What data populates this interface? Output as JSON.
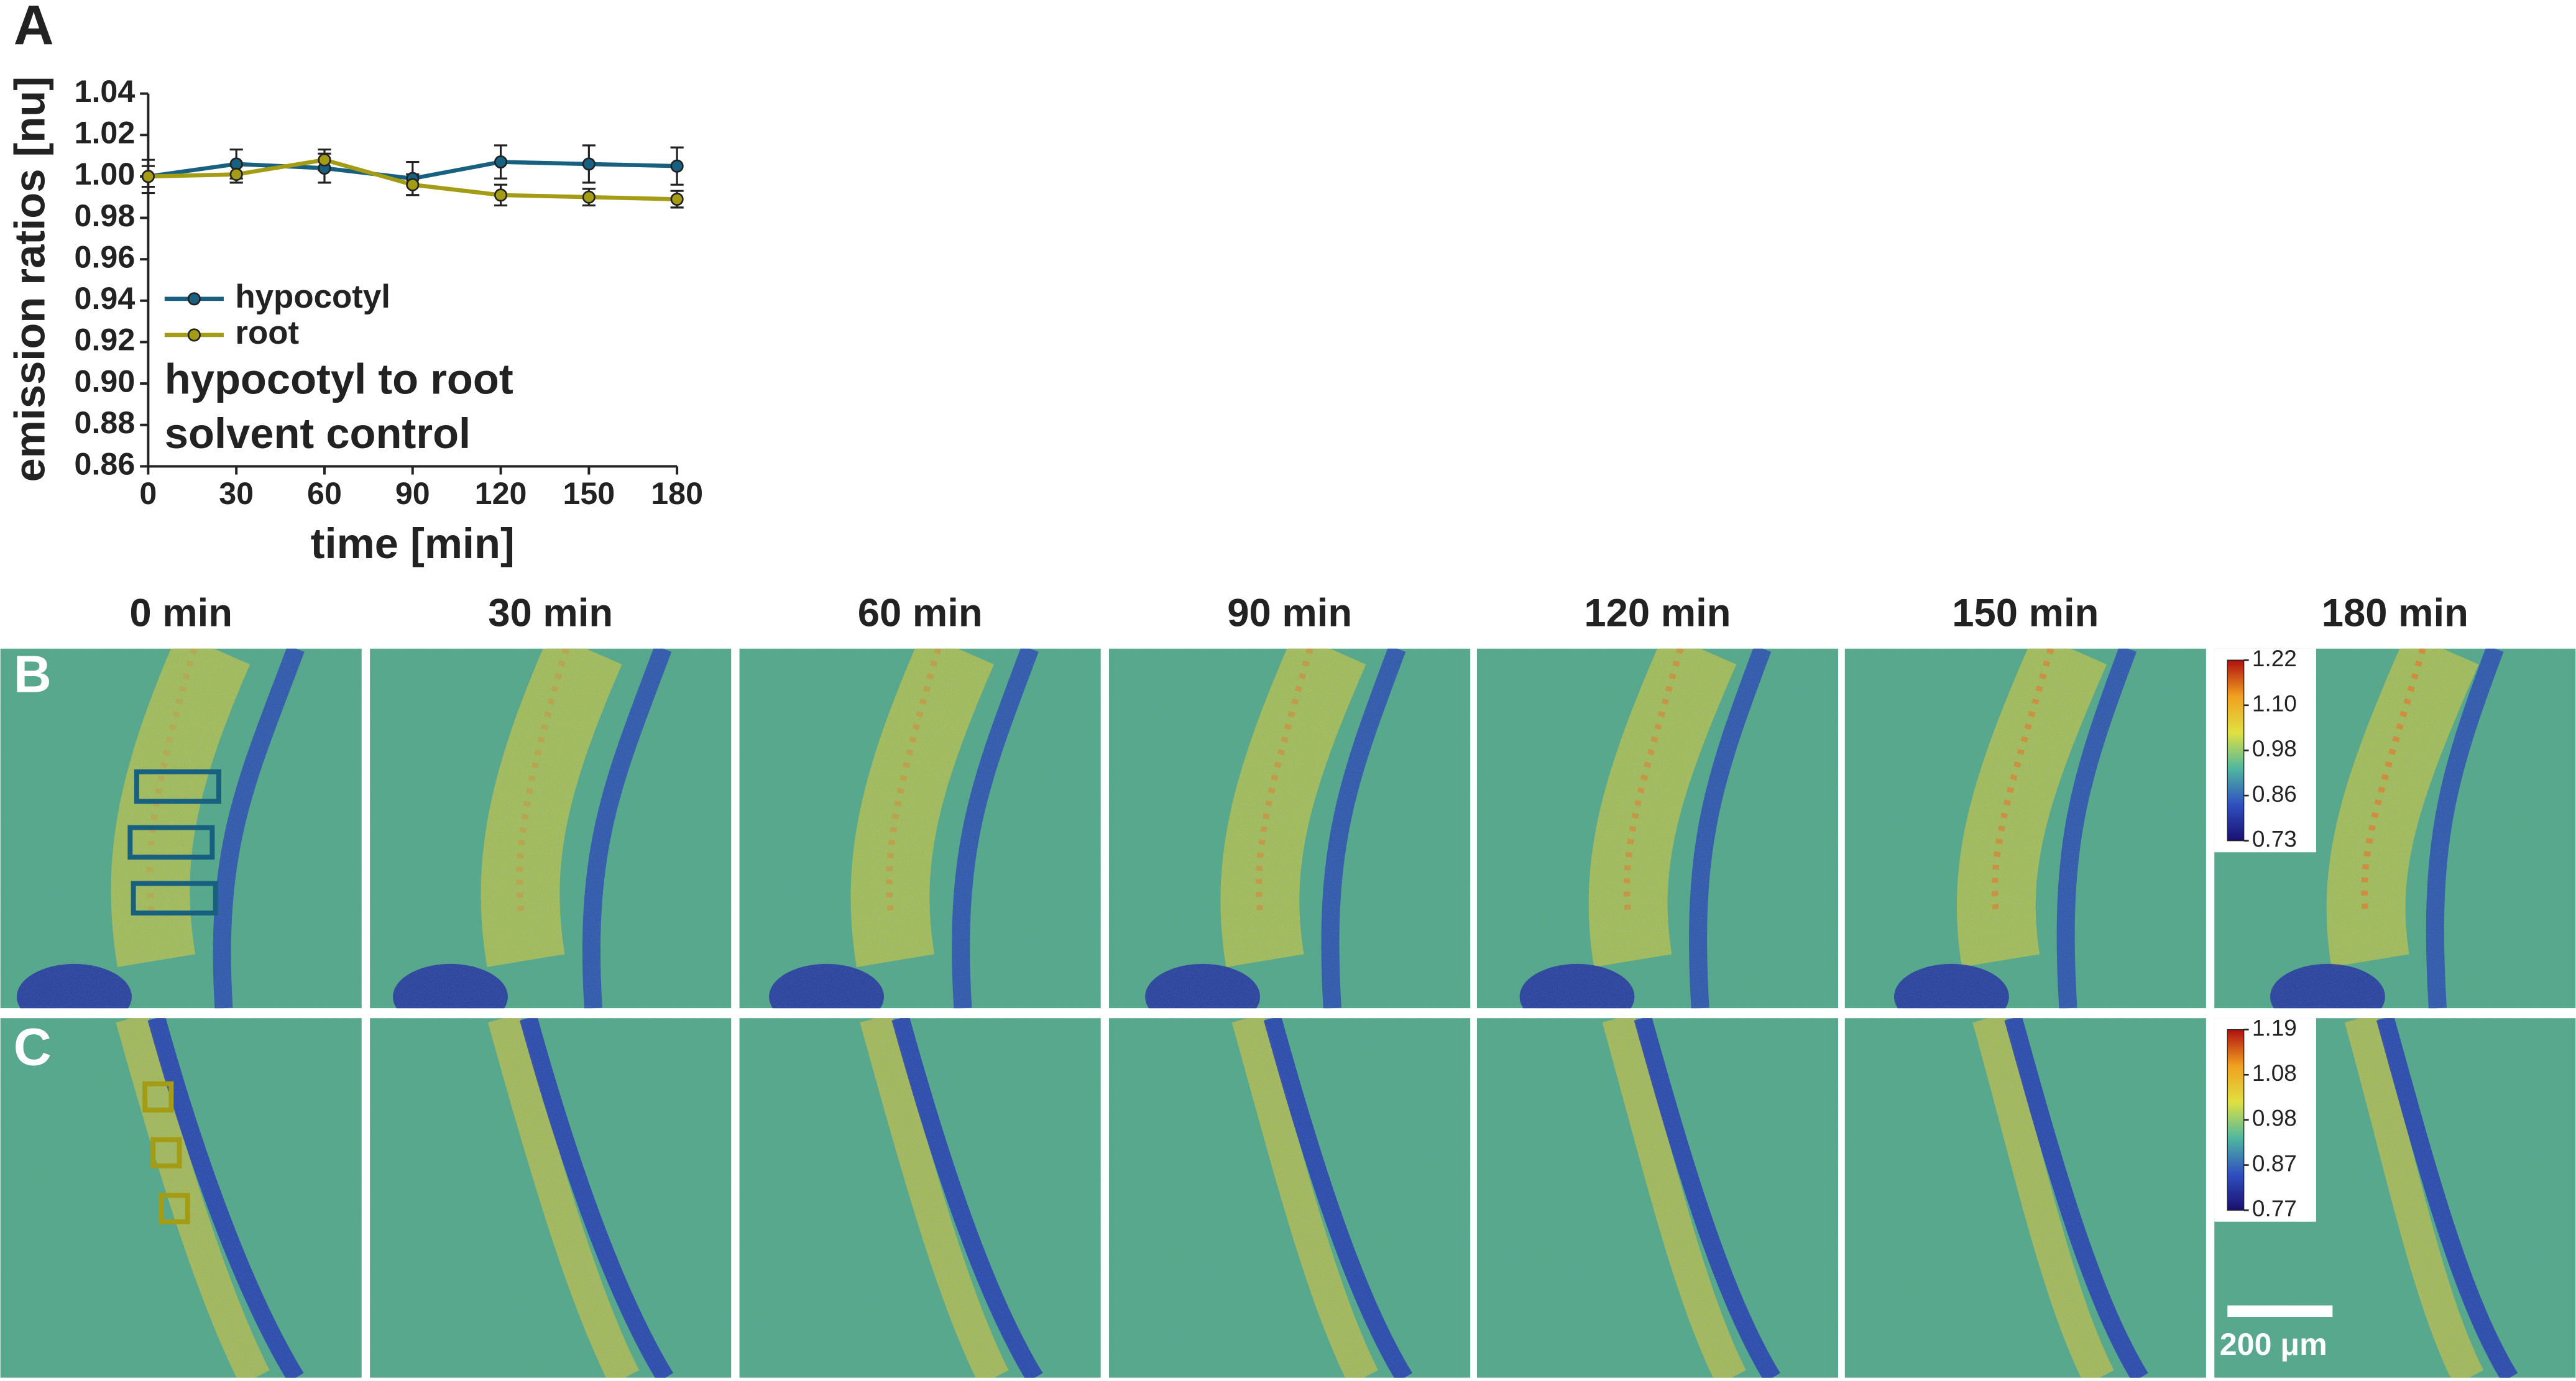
{
  "chart_data": {
    "type": "line",
    "panel_label": "A",
    "xlabel": "time [min]",
    "ylabel": "emission ratios [nu]",
    "annotations": [
      "hypocotyl to root",
      "solvent control"
    ],
    "x": [
      0,
      30,
      60,
      90,
      120,
      150,
      180
    ],
    "series": [
      {
        "name": "hypocotyl",
        "color": "#17607f",
        "values": [
          1.0,
          1.006,
          1.004,
          0.999,
          1.007,
          1.006,
          1.005
        ],
        "errors": [
          0.008,
          0.007,
          0.007,
          0.008,
          0.008,
          0.009,
          0.009
        ]
      },
      {
        "name": "root",
        "color": "#a39c14",
        "values": [
          1.0,
          1.001,
          1.008,
          0.996,
          0.991,
          0.99,
          0.989
        ],
        "errors": [
          0.005,
          0.004,
          0.005,
          0.005,
          0.005,
          0.004,
          0.004
        ]
      }
    ],
    "xlim": [
      0,
      180
    ],
    "xticks": [
      0,
      30,
      60,
      90,
      120,
      150,
      180
    ],
    "ylim": [
      0.86,
      1.04
    ],
    "yticks": [
      0.86,
      0.88,
      {
        "value": 0.9,
        "label": "0.90"
      },
      0.92,
      0.94,
      0.96,
      0.98,
      {
        "value": 1,
        "label": "1.00"
      },
      1.02,
      1.04
    ],
    "grid": false
  },
  "figure": {
    "time_labels": [
      "0 min",
      "30 min",
      "60 min",
      "90 min",
      "120 min",
      "150 min",
      "180 min"
    ],
    "panels": [
      {
        "label": "B",
        "colorbar": [
          "1.22",
          "1.10",
          "0.98",
          "0.86",
          "0.73"
        ]
      },
      {
        "label": "C",
        "colorbar": [
          "1.19",
          "1.08",
          "0.98",
          "0.87",
          "0.77"
        ]
      }
    ],
    "scale_bar": "200 μm"
  }
}
